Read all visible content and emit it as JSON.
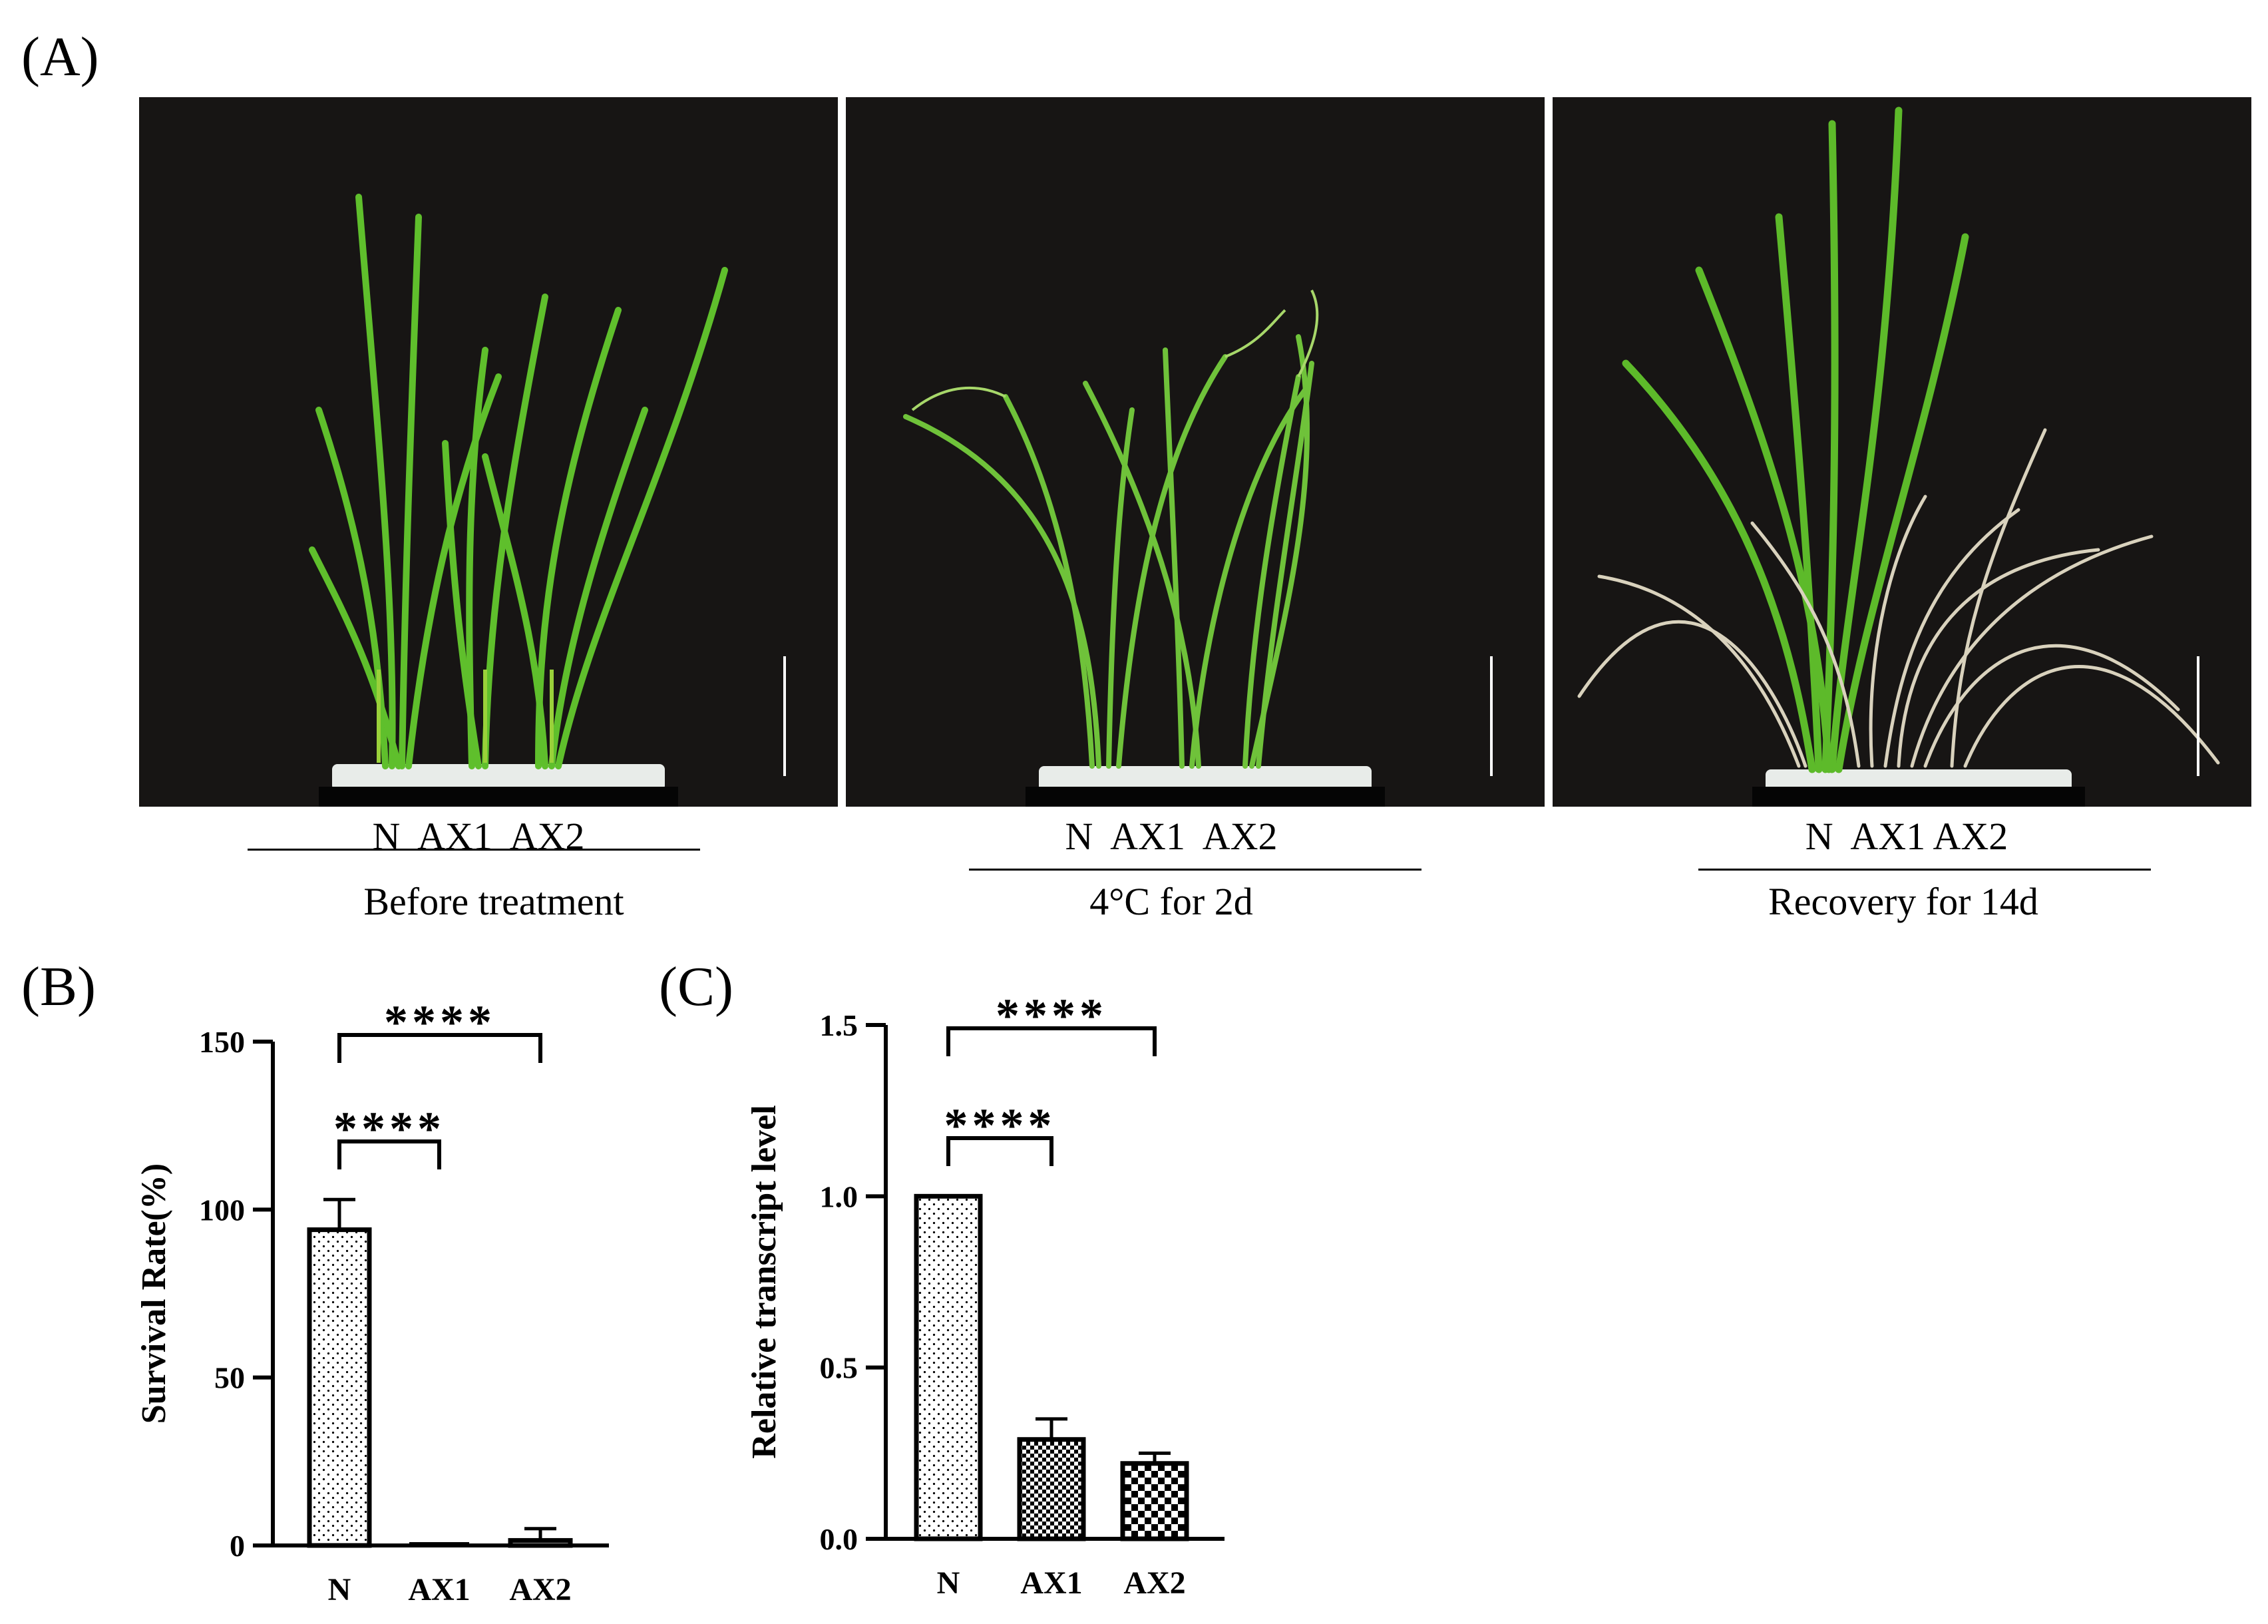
{
  "panel_a": {
    "label": "(A)",
    "photos": [
      {
        "genotypes": "N  AX1  AX2",
        "condition": "Before treatment"
      },
      {
        "genotypes": "N  AX1  AX2",
        "condition": "4°C for 2d"
      },
      {
        "genotypes": "N  AX1 AX2",
        "condition": "Recovery for 14d"
      }
    ]
  },
  "chart_data": [
    {
      "panel_label": "(B)",
      "type": "bar",
      "categories": [
        "N",
        "AX1",
        "AX2"
      ],
      "values": [
        94,
        0,
        1.5
      ],
      "error": [
        9,
        0,
        3.5
      ],
      "patterns": [
        "dots",
        "none",
        "none"
      ],
      "ylabel": "Survival Rate(%)",
      "ylim": [
        0,
        150
      ],
      "yticks": [
        0,
        50,
        100,
        150
      ],
      "ytick_labels": [
        "0",
        "50",
        "100",
        "150"
      ],
      "significance": [
        {
          "from": "N",
          "to": "AX1",
          "label": "****"
        },
        {
          "from": "N",
          "to": "AX2",
          "label": "****"
        }
      ],
      "grid": false
    },
    {
      "panel_label": "(C)",
      "type": "bar",
      "categories": [
        "N",
        "AX1",
        "AX2"
      ],
      "values": [
        1.0,
        0.29,
        0.22
      ],
      "error": [
        0,
        0.06,
        0.03
      ],
      "patterns": [
        "dots",
        "checker",
        "checker-coarse"
      ],
      "ylabel": "Relative transcript level",
      "ylim": [
        0,
        1.5
      ],
      "yticks": [
        0,
        0.5,
        1.0,
        1.5
      ],
      "ytick_labels": [
        "0.0",
        "0.5",
        "1.0",
        "1.5"
      ],
      "significance": [
        {
          "from": "N",
          "to": "AX1",
          "label": "****"
        },
        {
          "from": "N",
          "to": "AX2",
          "label": "****"
        }
      ],
      "grid": false
    }
  ]
}
